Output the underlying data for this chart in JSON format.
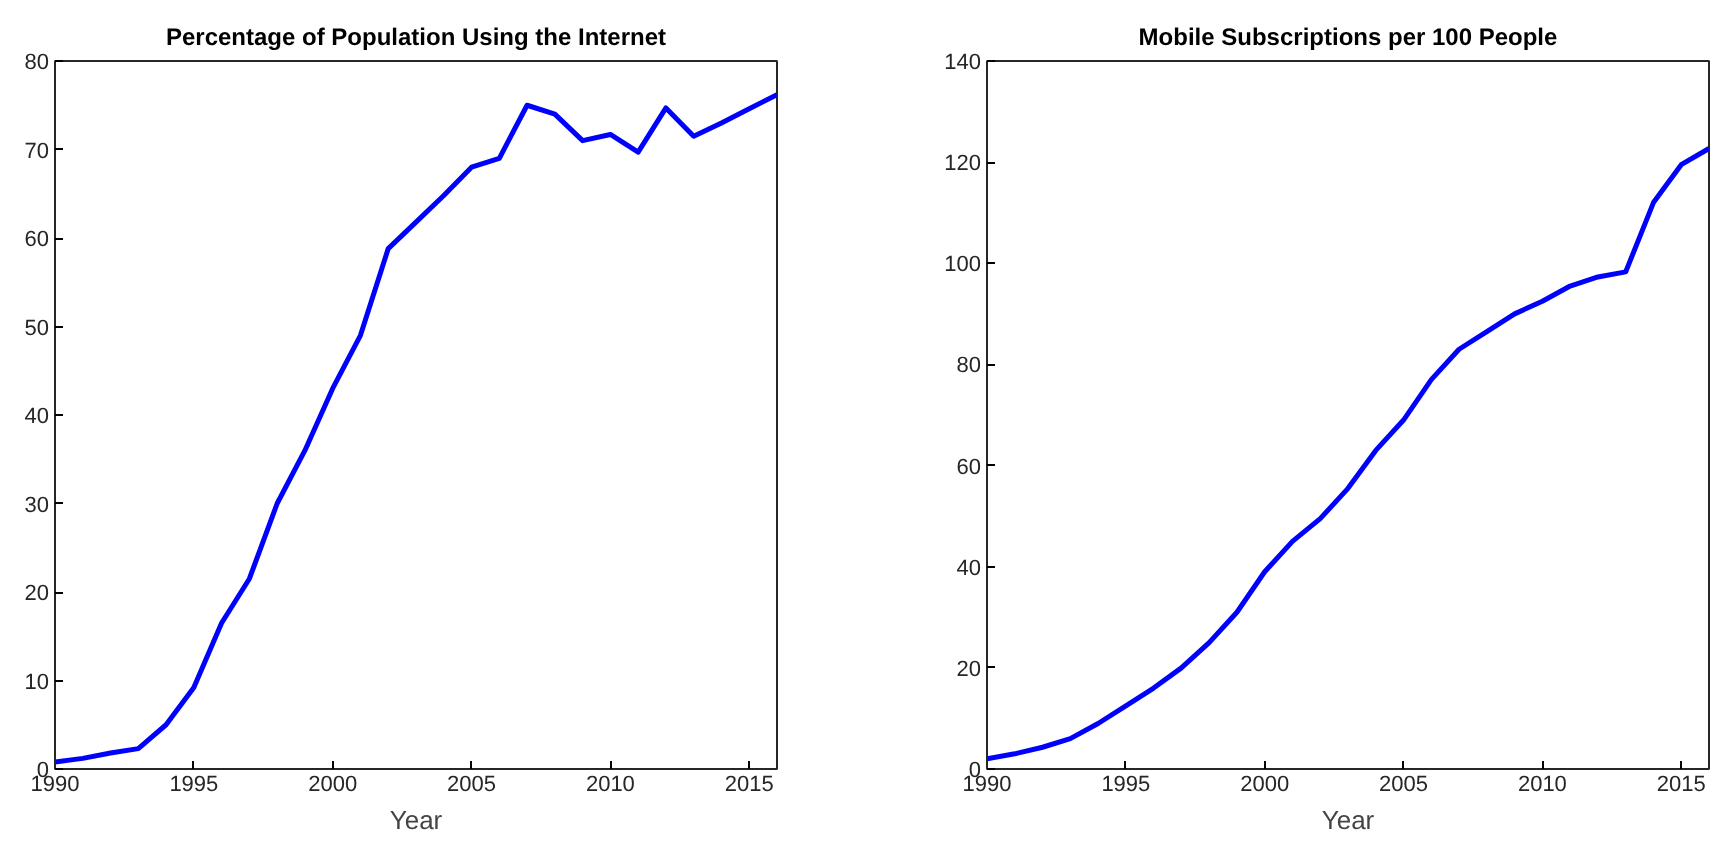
{
  "chart_data": [
    {
      "type": "line",
      "title": "Percentage of Population Using the Internet",
      "xlabel": "Year",
      "x": [
        1990,
        1991,
        1992,
        1993,
        1994,
        1995,
        1996,
        1997,
        1998,
        1999,
        2000,
        2001,
        2002,
        2003,
        2004,
        2005,
        2006,
        2007,
        2008,
        2009,
        2010,
        2011,
        2012,
        2013,
        2014,
        2015,
        2016
      ],
      "series": [
        {
          "color": "#0000ff",
          "values": [
            0.8,
            1.2,
            1.8,
            2.3,
            5,
            9.2,
            16.5,
            21.5,
            30,
            36,
            43,
            49,
            58.8,
            61.8,
            64.8,
            68,
            69,
            75,
            74,
            71,
            71.7,
            69.7,
            74.7,
            71.5,
            73,
            74.6,
            76.2
          ]
        }
      ],
      "xlim": [
        1990,
        2016
      ],
      "xticks": [
        1990,
        1995,
        2000,
        2005,
        2010,
        2015
      ],
      "ylim": [
        0,
        80
      ],
      "yticks": [
        0,
        10,
        20,
        30,
        40,
        50,
        60,
        70,
        80
      ],
      "grid": false,
      "marker": "none",
      "line_style": "solid"
    },
    {
      "type": "line",
      "title": "Mobile Subscriptions per 100 People",
      "xlabel": "Year",
      "x": [
        1990,
        1991,
        1992,
        1993,
        1994,
        1995,
        1996,
        1997,
        1998,
        1999,
        2000,
        2001,
        2002,
        2003,
        2004,
        2005,
        2006,
        2007,
        2008,
        2009,
        2010,
        2011,
        2012,
        2013,
        2014,
        2015,
        2016
      ],
      "series": [
        {
          "color": "#0000ff",
          "values": [
            2,
            3,
            4.3,
            6,
            9,
            12.5,
            16,
            20,
            25,
            31,
            39,
            45,
            49.5,
            55.5,
            63,
            69,
            77,
            83,
            86.5,
            90,
            92.5,
            95.5,
            97.3,
            98.3,
            112,
            119.5,
            122.7
          ]
        }
      ],
      "xlim": [
        1990,
        2016
      ],
      "xticks": [
        1990,
        1995,
        2000,
        2005,
        2010,
        2015
      ],
      "ylim": [
        0,
        140
      ],
      "yticks": [
        0,
        20,
        40,
        60,
        80,
        100,
        120,
        140
      ],
      "grid": false,
      "marker": "none",
      "line_style": "solid"
    }
  ]
}
